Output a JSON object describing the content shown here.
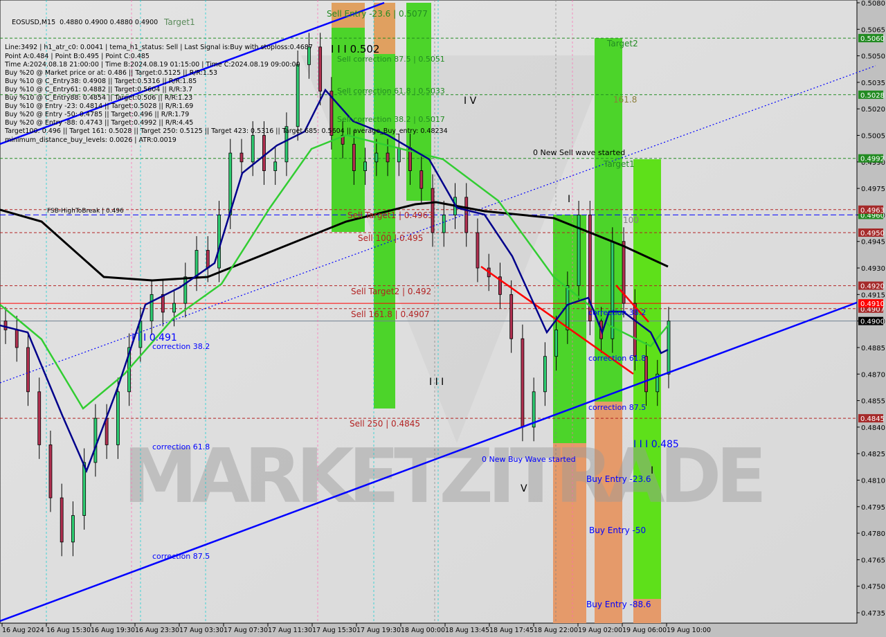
{
  "info": {
    "title": "EOSUSD,M15  0.4880 0.4900 0.4880 0.4900",
    "lines": [
      "Line:3492 | h1_atr_c0: 0.0041 | tema_h1_status: Sell | Last Signal is:Buy with stoploss:0.4687",
      "Point A:0.484 | Point B:0.495 | Point C:0.485",
      "Time A:2024.08.18 21:00:00 | Time B:2024.08.19 01:15:00 | Time C:2024.08.19 09:00:00",
      "Buy %20 @ Market price or at: 0.486 || Target:0.5125 || R/R:1.53",
      "Buy %10 @ C_Entry38: 0.4908 || Target:0.5316 || R/R:1.85",
      "Buy %10 @ C_Entry61: 0.4882 || Target:0.5604 || R/R:3.7",
      "Buy %10 @ C_Entry88: 0.4854 || Target:0.506 || R/R:1.23",
      "Buy %10 @ Entry -23: 0.4814 || Target:0.5028 || R/R:1.69",
      "Buy %20 @ Entry -50: 0.4785 || Target:0.496 || R/R:1.79",
      "Buy %20 @ Entry -88: 0.4743 || Target:0.4992 || R/R:4.45",
      "Target100: 0.496 || Target 161: 0.5028 || Target 250: 0.5125 || Target 423: 0.5316 || Target 685: 0.5604 || average_Buy_entry: 0.48234",
      "minimum_distance_buy_levels: 0.0026 | ATR:0.0019"
    ]
  },
  "labels": {
    "sell_entry_236": "Sell Entry -23.6 | 0.5077",
    "wave3_top": "I I I 0.502",
    "sell_corr_875": "Sell correction 87.5 | 0.5051",
    "sell_corr_618": "Sell correction 61.8 | 0.5033",
    "sell_corr_382": "Sell correction 38.2 | 0.5017",
    "target1_left": "Target1",
    "target2": "Target2",
    "t1618": "161.8",
    "new_sell_wave": "0 New Sell wave started",
    "target1_right": "Target1",
    "wave4": "I V",
    "fsb": "FSB-HighToBreak | 0.496",
    "sell_target1": "Sell Target1 | 0.4963",
    "sell_100": "Sell 100 | 0.495",
    "sell_target2": "Sell Target2 | 0.492",
    "sell_1618": "Sell 161.8 | 0.4907",
    "wave3_left": "I I I 0.491",
    "corr382_left": "correction 38.2",
    "corr618_left": "correction 61.8",
    "corr875_left": "correction 87.5",
    "sell_250": "Sell 250 | 0.4845",
    "wave3_mid": "I I I",
    "new_buy_wave": "0 New Buy Wave started",
    "wave5": "V",
    "wave3_right": "I I I 0.485",
    "corr382_right": "correction 38.2",
    "corr618_right": "correction 61.8",
    "corr875_right": "correction 87.5",
    "buy_entry_236": "Buy Entry -23.6",
    "buy_entry_50": "Buy Entry -50",
    "buy_entry_886": "Buy Entry -88.6",
    "l100": "100",
    "wave1": "I",
    "wave1b": "I",
    "watermark": "MARKETZITRADE"
  },
  "chart_data": {
    "type": "candlestick",
    "symbol": "EOSUSD",
    "timeframe": "M15",
    "ylim": [
      0.4735,
      0.508
    ],
    "y_ticks": [
      0.508,
      0.5065,
      0.505,
      0.5035,
      0.502,
      0.5005,
      0.499,
      0.4975,
      0.496,
      0.4945,
      0.493,
      0.4915,
      0.49,
      0.4885,
      0.487,
      0.4855,
      0.484,
      0.4825,
      0.481,
      0.4795,
      0.478,
      0.4765,
      0.475,
      0.4735
    ],
    "x_ticks": [
      "16 Aug 2024",
      "16 Aug 15:30",
      "16 Aug 19:30",
      "16 Aug 23:30",
      "17 Aug 03:30",
      "17 Aug 07:30",
      "17 Aug 11:30",
      "17 Aug 15:30",
      "17 Aug 19:30",
      "18 Aug 00:00",
      "18 Aug 13:45",
      "18 Aug 17:45",
      "18 Aug 22:00",
      "19 Aug 02:00",
      "19 Aug 06:00",
      "19 Aug 10:00"
    ],
    "closes": [
      0.4895,
      0.4885,
      0.486,
      0.483,
      0.48,
      0.4775,
      0.479,
      0.482,
      0.4845,
      0.483,
      0.486,
      0.4885,
      0.49,
      0.4915,
      0.4905,
      0.491,
      0.4925,
      0.494,
      0.493,
      0.496,
      0.4995,
      0.499,
      0.5005,
      0.4985,
      0.499,
      0.501,
      0.5045,
      0.5055,
      0.503,
      0.5005,
      0.5,
      0.4985,
      0.499,
      0.4995,
      0.499,
      0.4998,
      0.4985,
      0.4975,
      0.495,
      0.496,
      0.497,
      0.495,
      0.493,
      0.4925,
      0.4915,
      0.489,
      0.484,
      0.486,
      0.488,
      0.4895,
      0.492,
      0.496,
      0.49,
      0.489,
      0.4945,
      0.491,
      0.488,
      0.486,
      0.487,
      0.49
    ],
    "price_tags": [
      {
        "value": "0.5060",
        "color": "#228b22"
      },
      {
        "value": "0.5028",
        "color": "#228b22"
      },
      {
        "value": "0.4992",
        "color": "#228b22"
      },
      {
        "value": "0.4960",
        "color": "#228b22"
      },
      {
        "value": "0.4963",
        "color": "#a52a2a"
      },
      {
        "value": "0.4950",
        "color": "#a52a2a"
      },
      {
        "value": "0.4920",
        "color": "#a52a2a"
      },
      {
        "value": "0.4907",
        "color": "#a52a2a"
      },
      {
        "value": "0.4910",
        "color": "#ff0000"
      },
      {
        "value": "0.4900",
        "color": "#000000"
      },
      {
        "value": "0.4845",
        "color": "#a52a2a"
      }
    ],
    "levels": {
      "green_dashed": [
        0.506,
        0.5028,
        0.4992
      ],
      "red_dashed": [
        0.4963,
        0.495,
        0.492,
        0.4907,
        0.4845
      ],
      "red_solid": 0.491,
      "blue_dashed": 0.496,
      "current": 0.49
    },
    "colors": {
      "buy_zone": "#4cd42a",
      "sell_zone_top": "#e0a060",
      "ma_black": "#000000",
      "ma_green": "#32cd32",
      "ma_navy": "#00008b",
      "trend": "#0000ff"
    }
  }
}
